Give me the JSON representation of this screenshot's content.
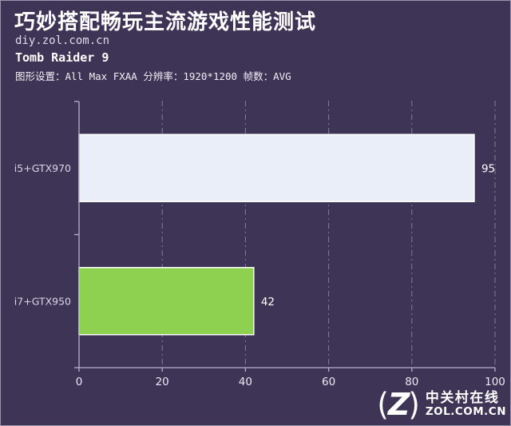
{
  "header": {
    "title": "巧妙搭配畅玩主流游戏性能测试",
    "site": "diy.zol.com.cn",
    "game": "Tomb Raider 9",
    "settings": "图形设置：All Max FXAA 分辨率：1920*1200 帧数：AVG"
  },
  "chart_data": {
    "type": "bar",
    "orientation": "horizontal",
    "title": "Tomb Raider 9 benchmark (frames per second, AVG)",
    "categories": [
      "i5+GTX970",
      "i7+GTX950"
    ],
    "values": [
      95,
      42
    ],
    "bar_colors": [
      "#E9EEF8",
      "#8ED150"
    ],
    "xlim": [
      0,
      100
    ],
    "x_ticks": [
      0,
      20,
      40,
      60,
      80,
      100
    ],
    "grid": "dashed-vertical",
    "value_labels": true,
    "legend": "none"
  },
  "footer": {
    "logo_cn": "中关村在线",
    "logo_en": "ZOL.COM.CN",
    "logo_letter": "Z"
  },
  "colors": {
    "background": "#3E3456",
    "bar_light": "#E9EEF8",
    "bar_green": "#8ED150",
    "bar_border": "#FFFFFF",
    "axis": "#B7B1C7",
    "gridline": "#A9A2BE",
    "text_primary": "#FFFFFF",
    "text_secondary": "#D9D6E5"
  }
}
